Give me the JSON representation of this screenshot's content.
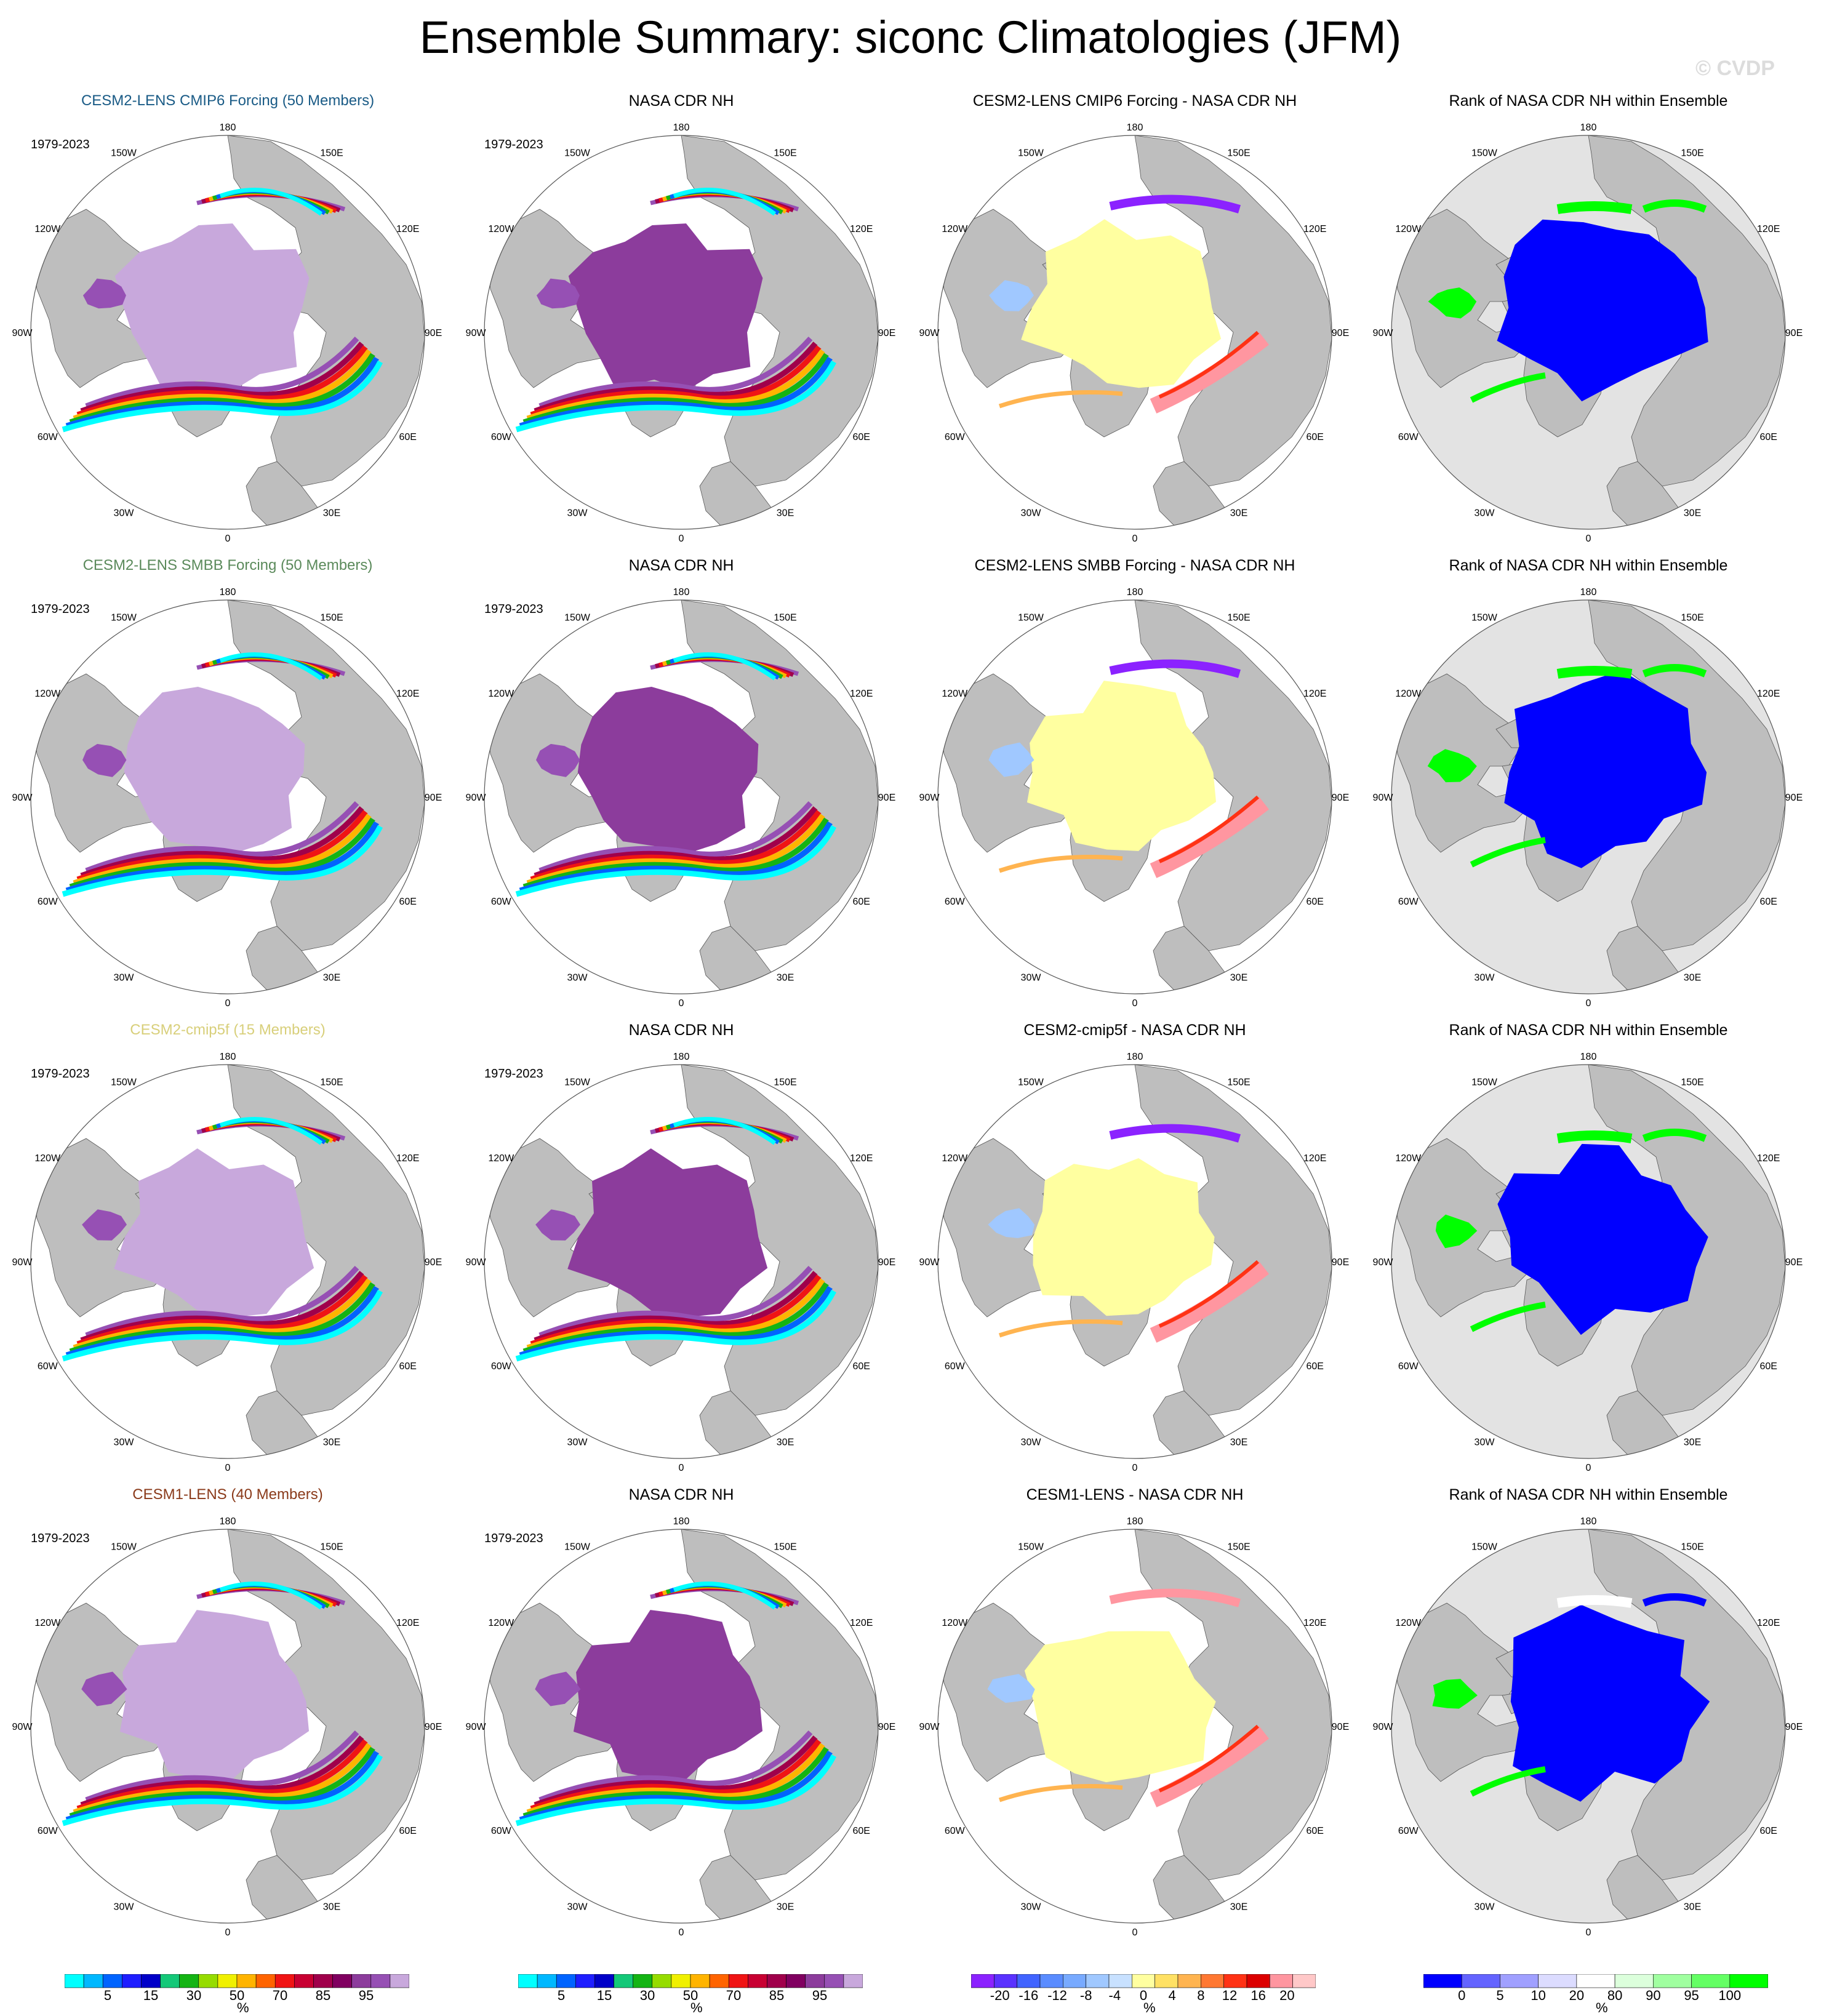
{
  "title": "Ensemble Summary: siconc Climatologies (JFM)",
  "watermark": "© CVDP",
  "period": "1979-2023",
  "longitude_labels": [
    "180",
    "150E",
    "120E",
    "90E",
    "60E",
    "30E",
    "0",
    "30W",
    "60W",
    "90W",
    "120W",
    "150W"
  ],
  "colors": {
    "land": "#bebebe",
    "ocean": "#ffffff",
    "rank_ocean": "#e3e3e3",
    "coast": "#555555"
  },
  "rows": [
    {
      "ensemble": {
        "label": "CESM2-LENS CMIP6 Forcing (50 Members)",
        "color": "#1a5b86"
      },
      "observed": "NASA CDR NH",
      "difference": "CESM2-LENS CMIP6 Forcing - NASA CDR NH",
      "rank": "Rank of NASA CDR NH within Ensemble"
    },
    {
      "ensemble": {
        "label": "CESM2-LENS SMBB Forcing (50 Members)",
        "color": "#5b8a5b"
      },
      "observed": "NASA CDR NH",
      "difference": "CESM2-LENS SMBB Forcing - NASA CDR NH",
      "rank": "Rank of NASA CDR NH within Ensemble"
    },
    {
      "ensemble": {
        "label": "CESM2-cmip5f (15 Members)",
        "color": "#d8cf7a"
      },
      "observed": "NASA CDR NH",
      "difference": "CESM2-cmip5f - NASA CDR NH",
      "rank": "Rank of NASA CDR NH within Ensemble"
    },
    {
      "ensemble": {
        "label": "CESM1-LENS (40 Members)",
        "color": "#8a3a1a"
      },
      "observed": "NASA CDR NH",
      "difference": "CESM1-LENS - NASA CDR NH",
      "rank": "Rank of NASA CDR NH within Ensemble"
    }
  ],
  "chart_data": {
    "type": "heatmap",
    "unit": "%",
    "colorbars": {
      "concentration": {
        "labels": [
          "5",
          "15",
          "30",
          "50",
          "70",
          "85",
          "95"
        ],
        "colors": [
          "#00ffff",
          "#00b8ff",
          "#0064ff",
          "#1e1eff",
          "#0000c8",
          "#14c878",
          "#14b414",
          "#96dc00",
          "#f0f000",
          "#ffb400",
          "#ff6400",
          "#f01414",
          "#c80032",
          "#a0004b",
          "#800060",
          "#8c3c9c",
          "#9650b4",
          "#c8a8dc"
        ]
      },
      "difference": {
        "labels": [
          "-20",
          "-16",
          "-12",
          "-8",
          "-4",
          "0",
          "4",
          "8",
          "12",
          "16",
          "20"
        ],
        "colors": [
          "#8b22ff",
          "#5a32ff",
          "#4164ff",
          "#5a8cff",
          "#78aaff",
          "#a0c8ff",
          "#c8e1ff",
          "#ffffa0",
          "#ffe164",
          "#ffb450",
          "#ff7832",
          "#ff3214",
          "#dc0000",
          "#ff96a0",
          "#ffc8c8"
        ]
      },
      "rank": {
        "labels": [
          "0",
          "5",
          "10",
          "20",
          "80",
          "90",
          "95",
          "100"
        ],
        "colors": [
          "#0000ff",
          "#6464ff",
          "#a0a0ff",
          "#dcdcff",
          "#ffffff",
          "#dcffdc",
          "#a0ffa0",
          "#64ff64",
          "#00ff00"
        ]
      }
    }
  }
}
